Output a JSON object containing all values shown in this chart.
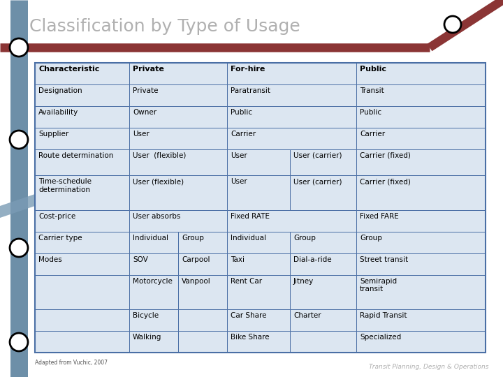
{
  "title": "Classification by Type of Usage",
  "title_color": "#b0b0b0",
  "title_fontsize": 18,
  "bg_color": "#ffffff",
  "table_border_color": "#4a6fa5",
  "table_bg_color": "#dce6f1",
  "cell_text_color": "#000000",
  "cell_fontsize": 7.5,
  "header_fontsize": 8.0,
  "transit_line_color": "#6d8fa8",
  "metro_line_color": "#8b3535",
  "footnote": "Adapted from Vuchic, 2007",
  "watermark": "Transit Planning, Design & Operations",
  "rows": [
    [
      "Characteristic",
      "Private",
      "",
      "For-hire",
      "",
      "Public"
    ],
    [
      "Designation",
      "Private",
      "",
      "Paratransit",
      "",
      "Transit"
    ],
    [
      "Availability",
      "Owner",
      "",
      "Public",
      "",
      "Public"
    ],
    [
      "Supplier",
      "User",
      "",
      "Carrier",
      "",
      "Carrier"
    ],
    [
      "Route determination",
      "User  (flexible)",
      "",
      "User",
      "User (carrier)",
      "Carrier (fixed)"
    ],
    [
      "Time-schedule\ndetermination",
      "User (flexible)",
      "",
      "User",
      "User (carrier)",
      "Carrier (fixed)"
    ],
    [
      "Cost-price",
      "User absorbs",
      "",
      "Fixed RATE",
      "",
      "Fixed FARE"
    ],
    [
      "Carrier type",
      "Individual",
      "Group",
      "Individual",
      "Group",
      "Group"
    ],
    [
      "Modes",
      "SOV",
      "Carpool",
      "Taxi",
      "Dial-a-ride",
      "Street transit"
    ],
    [
      "",
      "Motorcycle",
      "Vanpool",
      "Rent Car",
      "Jitney",
      "Semirapid\ntransit"
    ],
    [
      "",
      "Bicycle",
      "",
      "Car Share",
      "Charter",
      "Rapid Transit"
    ],
    [
      "",
      "Walking",
      "",
      "Bike Share",
      "",
      "Specialized"
    ]
  ],
  "row_heights_norm": [
    1.0,
    1.0,
    1.0,
    1.0,
    1.2,
    1.6,
    1.0,
    1.0,
    1.0,
    1.6,
    1.0,
    1.0
  ]
}
